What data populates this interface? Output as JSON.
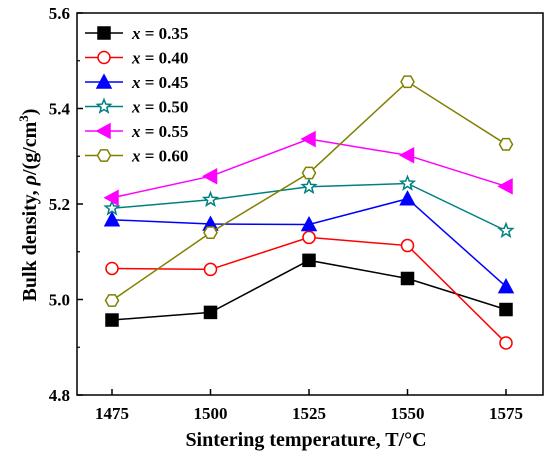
{
  "chart_data": {
    "type": "line",
    "x": [
      1475,
      1500,
      1525,
      1550,
      1575
    ],
    "x_tick_labels": [
      "1475",
      "1500",
      "1525",
      "1550",
      "1575"
    ],
    "xlabel": "Sintering temperature, T/°C",
    "ylabel_main": "Bulk density, ",
    "ylabel_rho": "ρ",
    "ylabel_units": "/(g/cm",
    "ylabel_sup": "3",
    "ylabel_close": ")",
    "ylim": [
      4.8,
      5.6
    ],
    "y_ticks": [
      4.8,
      5.0,
      5.2,
      5.4,
      5.6
    ],
    "y_tick_labels": [
      "4.8",
      "5.0",
      "5.2",
      "5.4",
      "5.6"
    ],
    "legend_position": "top-left",
    "grid": false,
    "series": [
      {
        "name": "x = 0.35",
        "var": "x",
        "eq": " = 0.35",
        "color": "#000000",
        "marker": "square-filled",
        "values": [
          4.957,
          4.973,
          5.082,
          5.044,
          4.979
        ]
      },
      {
        "name": "x = 0.40",
        "var": "x",
        "eq": " = 0.40",
        "color": "#ff0000",
        "marker": "circle-open",
        "values": [
          5.065,
          5.063,
          5.13,
          5.113,
          4.909
        ]
      },
      {
        "name": "x = 0.45",
        "var": "x",
        "eq": " = 0.45",
        "color": "#0000ff",
        "marker": "triangle-up-filled",
        "values": [
          5.167,
          5.158,
          5.157,
          5.211,
          5.027
        ]
      },
      {
        "name": "x = 0.50",
        "var": "x",
        "eq": " = 0.50",
        "color": "#008080",
        "marker": "star-open",
        "values": [
          5.191,
          5.209,
          5.236,
          5.243,
          5.144
        ]
      },
      {
        "name": "x = 0.55",
        "var": "x",
        "eq": " = 0.55",
        "color": "#ff00ff",
        "marker": "triangle-left-filled",
        "values": [
          5.213,
          5.258,
          5.336,
          5.302,
          5.237
        ]
      },
      {
        "name": "x = 0.60",
        "var": "x",
        "eq": " = 0.60",
        "color": "#808000",
        "marker": "hexagon-open",
        "values": [
          4.998,
          5.14,
          5.265,
          5.456,
          5.325
        ]
      }
    ]
  }
}
